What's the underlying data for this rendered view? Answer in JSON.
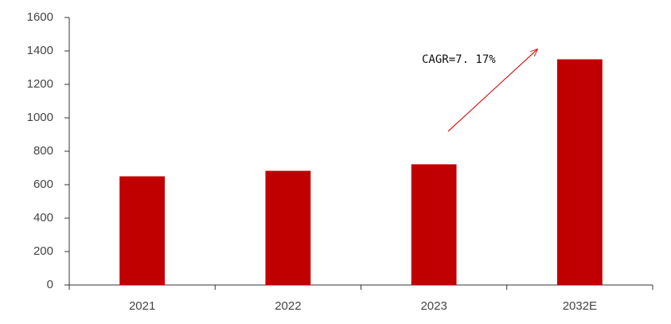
{
  "chart_data": {
    "type": "bar",
    "categories": [
      "2021",
      "2022",
      "2023",
      "2032E"
    ],
    "values": [
      650,
      683,
      722,
      1350
    ],
    "color": "#c00000",
    "ylim": [
      0,
      1600
    ],
    "yticks": [
      0,
      200,
      400,
      600,
      800,
      1000,
      1200,
      1400,
      1600
    ],
    "grid": false,
    "annotation": "CAGR=7. 17%"
  }
}
